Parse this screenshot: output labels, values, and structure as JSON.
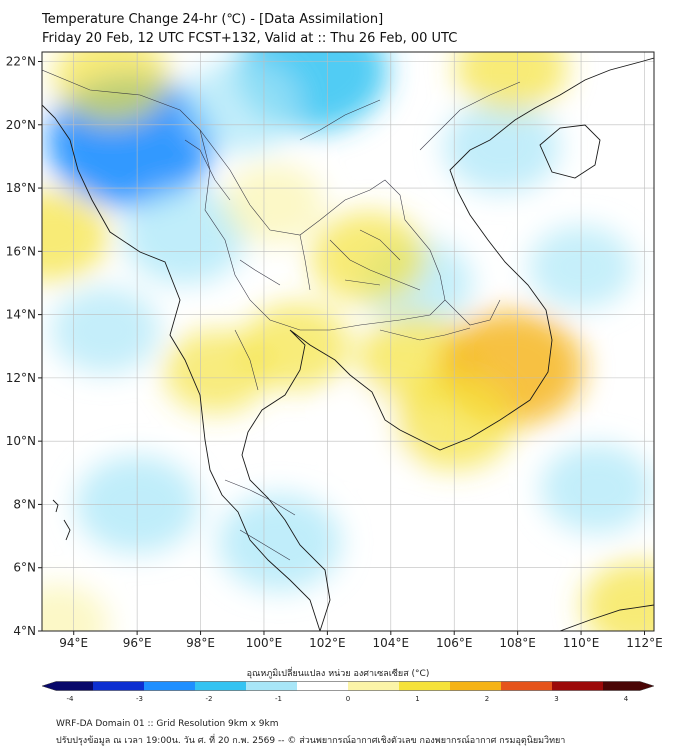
{
  "header": {
    "title_line1": "Temperature Change 24-hr (℃) - [Data Assimilation]",
    "title_line2": "Friday 20 Feb, 12 UTC FCST+132, Valid at :: Thu 26 Feb, 00 UTC"
  },
  "map": {
    "lat_labels": [
      "22°N",
      "20°N",
      "18°N",
      "16°N",
      "14°N",
      "12°N",
      "10°N",
      "8°N",
      "6°N",
      "4°N"
    ],
    "lon_labels": [
      "94°E",
      "96°E",
      "98°E",
      "100°E",
      "102°E",
      "104°E",
      "106°E",
      "108°E",
      "110°E",
      "112°E"
    ],
    "lat_range": [
      4,
      22.3
    ],
    "lon_range": [
      93,
      112.3
    ],
    "field_blobs": [
      {
        "lon": 95.8,
        "lat": 19.5,
        "value": -2.4
      },
      {
        "lon": 101.5,
        "lat": 21.7,
        "value": -2.0
      },
      {
        "lon": 97.5,
        "lat": 16.5,
        "value": -1.2
      },
      {
        "lon": 99.3,
        "lat": 20.6,
        "value": -1.0
      },
      {
        "lon": 96.0,
        "lat": 8.0,
        "value": -1.2
      },
      {
        "lon": 100.5,
        "lat": 6.8,
        "value": -1.2
      },
      {
        "lon": 95.0,
        "lat": 13.5,
        "value": -0.8
      },
      {
        "lon": 110.5,
        "lat": 8.5,
        "value": -0.9
      },
      {
        "lon": 110.0,
        "lat": 15.5,
        "value": -0.7
      },
      {
        "lon": 107.5,
        "lat": 19.3,
        "value": -1.0
      },
      {
        "lon": 104.8,
        "lat": 15.0,
        "value": -0.9
      },
      {
        "lon": 103.8,
        "lat": 10.6,
        "value": -0.4
      },
      {
        "lon": 95.2,
        "lat": 21.5,
        "value": 1.0
      },
      {
        "lon": 93.3,
        "lat": 16.5,
        "value": 1.0
      },
      {
        "lon": 107.8,
        "lat": 21.8,
        "value": 0.9
      },
      {
        "lon": 103.3,
        "lat": 15.8,
        "value": 1.0
      },
      {
        "lon": 101.0,
        "lat": 13.0,
        "value": 0.8
      },
      {
        "lon": 104.8,
        "lat": 12.6,
        "value": 1.0
      },
      {
        "lon": 107.8,
        "lat": 12.3,
        "value": 1.8
      },
      {
        "lon": 106.0,
        "lat": 10.6,
        "value": 1.1
      },
      {
        "lon": 98.5,
        "lat": 12.2,
        "value": 0.7
      },
      {
        "lon": 100.3,
        "lat": 17.5,
        "value": 0.6
      },
      {
        "lon": 111.8,
        "lat": 4.8,
        "value": 0.9
      },
      {
        "lon": 93.5,
        "lat": 4.2,
        "value": 0.6
      }
    ]
  },
  "colorbar": {
    "label": "อุณหภูมิเปลี่ยนแปลง หน่วย องศาเซลเซียส (°C)",
    "ticks": [
      "-4",
      "-3",
      "-2",
      "-1",
      "0",
      "1",
      "2",
      "3",
      "4"
    ],
    "min": -4,
    "max": 4,
    "colors": [
      "#08086b",
      "#0d2fd1",
      "#1e8fff",
      "#33c3f2",
      "#a8e6f8",
      "#ffffff",
      "#fbf4a8",
      "#f5e23a",
      "#f5b316",
      "#e5541c",
      "#9c0a0a",
      "#4a0606"
    ]
  },
  "footer": {
    "line1": "WRF-DA Domain 01 :: Grid Resolution 9km x 9km",
    "line2": "ปรับปรุงข้อมูล ณ เวลา 19:00น. วัน ศ. ที่ 20 ก.พ. 2569 -- © ส่วนพยากรณ์อากาศเชิงตัวเลข กองพยากรณ์อากาศ กรมอุตุนิยมวิทยา"
  }
}
